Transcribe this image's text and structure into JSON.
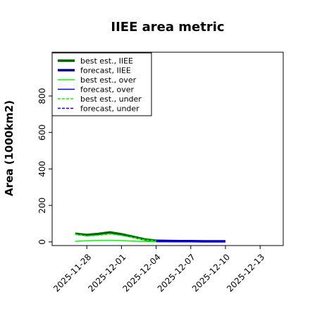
{
  "chart_data": {
    "type": "line",
    "title": "IIEE area metric",
    "ylabel": "Area (1000km2)",
    "xlabel": "",
    "ylim": [
      -20,
      1040
    ],
    "xlim": [
      "2025-11-25",
      "2025-12-15"
    ],
    "yticks": [
      0,
      200,
      400,
      600,
      800
    ],
    "xticks": [
      {
        "date": "2025-11-28",
        "label": "2025-11-28",
        "color": "#000000"
      },
      {
        "date": "2025-12-01",
        "label": "2025-12-01",
        "color": "#000000"
      },
      {
        "date": "2025-12-04",
        "label": "2025-12-04",
        "color": "#228B22"
      },
      {
        "date": "2025-12-07",
        "label": "2025-12-07",
        "color": "#000000"
      },
      {
        "date": "2025-12-10",
        "label": "2025-12-10",
        "color": "#000000"
      },
      {
        "date": "2025-12-13",
        "label": "2025-12-13",
        "color": "#000000"
      }
    ],
    "grid": false,
    "legend_position": "top-left",
    "series": [
      {
        "name": "best est., IIEE",
        "color": "#006400",
        "style": "solid",
        "width": 3.5,
        "x": [
          "2025-11-27",
          "2025-11-28",
          "2025-11-29",
          "2025-11-30",
          "2025-12-01",
          "2025-12-02",
          "2025-12-03",
          "2025-12-04"
        ],
        "y": [
          45,
          38,
          44,
          52,
          42,
          28,
          14,
          6
        ]
      },
      {
        "name": "forecast, IIEE",
        "color": "#00008B",
        "style": "solid",
        "width": 3.5,
        "x": [
          "2025-12-04",
          "2025-12-05",
          "2025-12-06",
          "2025-12-07",
          "2025-12-08",
          "2025-12-09",
          "2025-12-10"
        ],
        "y": [
          6,
          5,
          4,
          4,
          3,
          3,
          3
        ]
      },
      {
        "name": "best est., over",
        "color": "#00FF00",
        "style": "solid",
        "width": 1.5,
        "x": [
          "2025-11-27",
          "2025-11-28",
          "2025-11-29",
          "2025-11-30",
          "2025-12-01",
          "2025-12-02",
          "2025-12-03",
          "2025-12-04"
        ],
        "y": [
          3,
          6,
          8,
          9,
          7,
          4,
          2,
          1
        ]
      },
      {
        "name": "forecast, over",
        "color": "#0000FF",
        "style": "solid",
        "width": 1.5,
        "x": [
          "2025-12-04",
          "2025-12-05",
          "2025-12-06",
          "2025-12-07",
          "2025-12-08",
          "2025-12-09",
          "2025-12-10"
        ],
        "y": [
          1,
          1,
          1,
          1,
          1,
          1,
          1
        ]
      },
      {
        "name": "best est., under",
        "color": "#00FF00",
        "style": "dashed",
        "width": 1.5,
        "x": [
          "2025-11-27",
          "2025-11-28",
          "2025-11-29",
          "2025-11-30",
          "2025-12-01",
          "2025-12-02",
          "2025-12-03",
          "2025-12-04"
        ],
        "y": [
          42,
          32,
          36,
          43,
          35,
          24,
          12,
          5
        ]
      },
      {
        "name": "forecast, under",
        "color": "#0000FF",
        "style": "dashed",
        "width": 1.5,
        "x": [
          "2025-12-04",
          "2025-12-05",
          "2025-12-06",
          "2025-12-07",
          "2025-12-08",
          "2025-12-09",
          "2025-12-10"
        ],
        "y": [
          5,
          4,
          3,
          3,
          2,
          2,
          2
        ]
      }
    ]
  }
}
